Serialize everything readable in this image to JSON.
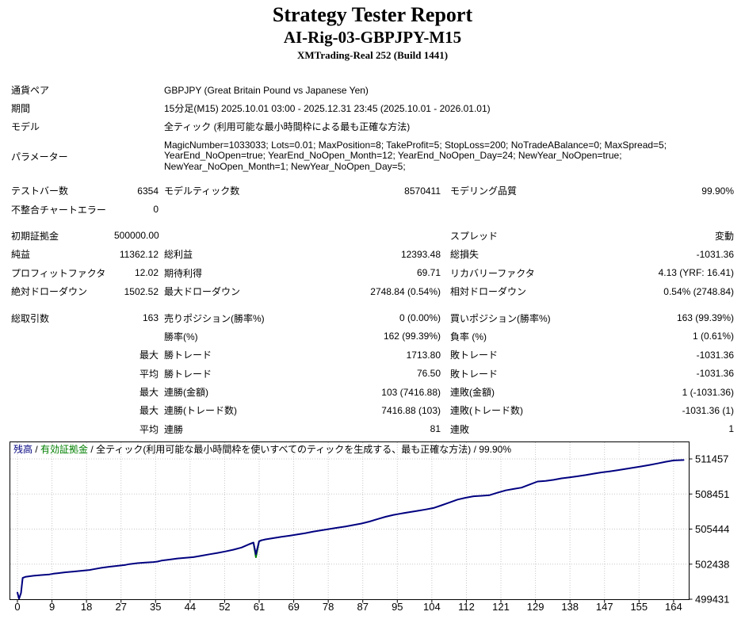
{
  "header": {
    "title": "Strategy Tester Report",
    "subtitle": "AI-Rig-03-GBPJPY-M15",
    "broker": "XMTrading-Real 252 (Build 1441)"
  },
  "info_rows": [
    {
      "label": "通貨ペア",
      "value": "GBPJPY (Great Britain Pound vs Japanese Yen)",
      "param": false
    },
    {
      "label": "期間",
      "value": "15分足(M15) 2025.10.01 03:00 - 2025.12.31 23:45 (2025.10.01 - 2026.01.01)",
      "param": false
    },
    {
      "label": "モデル",
      "value": "全ティック (利用可能な最小時間枠による最も正確な方法)",
      "param": false
    },
    {
      "label": "パラメーター",
      "value": "MagicNumber=1033033; Lots=0.01; MaxPosition=8; TakeProfit=5; StopLoss=200; NoTradeABalance=0; MaxSpread=5; YearEnd_NoOpen=true; YearEnd_NoOpen_Month=12; YearEnd_NoOpen_Day=24; NewYear_NoOpen=true; NewYear_NoOpen_Month=1; NewYear_NoOpen_Day=5;",
      "param": true
    }
  ],
  "stat_rows": [
    {
      "gap": false,
      "l1": "テストバー数",
      "v1": "6354",
      "l2": "モデルティック数",
      "v2": "8570411",
      "l3": "モデリング品質",
      "v3": "99.90%"
    },
    {
      "gap": false,
      "l1": "不整合チャートエラー",
      "v1": "0",
      "l2": "",
      "v2": "",
      "l3": "",
      "v3": ""
    },
    {
      "gap": true,
      "l1": "初期証拠金",
      "v1": "500000.00",
      "l2": "",
      "v2": "",
      "l3": "スプレッド",
      "v3": "変動"
    },
    {
      "gap": false,
      "l1": "純益",
      "v1": "11362.12",
      "l2": "総利益",
      "v2": "12393.48",
      "l3": "総損失",
      "v3": "-1031.36"
    },
    {
      "gap": false,
      "l1": "プロフィットファクタ",
      "v1": "12.02",
      "l2": "期待利得",
      "v2": "69.71",
      "l3": "リカバリーファクタ",
      "v3": "4.13 (YRF: 16.41)"
    },
    {
      "gap": false,
      "l1": "絶対ドローダウン",
      "v1": "1502.52",
      "l2": "最大ドローダウン",
      "v2": "2748.84 (0.54%)",
      "l3": "相対ドローダウン",
      "v3": "0.54% (2748.84)"
    },
    {
      "gap": true,
      "l1": "総取引数",
      "v1": "163",
      "l2": "売りポジション(勝率%)",
      "v2": "0 (0.00%)",
      "l3": "買いポジション(勝率%)",
      "v3": "163 (99.39%)"
    },
    {
      "gap": false,
      "l1": "",
      "v1": "",
      "l2": "勝率(%)",
      "v2": "162 (99.39%)",
      "l3": "負率 (%)",
      "v3": "1 (0.61%)"
    },
    {
      "gap": false,
      "l1": "",
      "v1": "最大",
      "l2": "勝トレード",
      "v2": "1713.80",
      "l3": "敗トレード",
      "v3": "-1031.36"
    },
    {
      "gap": false,
      "l1": "",
      "v1": "平均",
      "l2": "勝トレード",
      "v2": "76.50",
      "l3": "敗トレード",
      "v3": "-1031.36"
    },
    {
      "gap": false,
      "l1": "",
      "v1": "最大",
      "l2": "連勝(金額)",
      "v2": "103 (7416.88)",
      "l3": "連敗(金額)",
      "v3": "1 (-1031.36)"
    },
    {
      "gap": false,
      "l1": "",
      "v1": "最大",
      "l2": "連勝(トレード数)",
      "v2": "7416.88 (103)",
      "l3": "連敗(トレード数)",
      "v3": "-1031.36 (1)"
    },
    {
      "gap": false,
      "l1": "",
      "v1": "平均",
      "l2": "連勝",
      "v2": "81",
      "l3": "連敗",
      "v3": "1"
    }
  ],
  "chart_data": {
    "type": "line",
    "legend": {
      "balance_label": "残高",
      "sep1": " / ",
      "equity_label": "有効証拠金",
      "sep2": " / ",
      "description": "全ティック(利用可能な最小時間枠を使いすべてのティックを生成する、最も正確な方法)",
      "sep3": " / ",
      "quality": "99.90%"
    },
    "x_tick_labels": [
      0,
      9,
      18,
      27,
      35,
      44,
      52,
      61,
      69,
      78,
      87,
      95,
      104,
      112,
      121,
      129,
      138,
      147,
      155,
      164
    ],
    "y_tick_labels": [
      511457,
      508451,
      505444,
      502438,
      499431
    ],
    "xlim": [
      0,
      167.8
    ],
    "ylim": [
      499431,
      511457
    ],
    "grid": true,
    "legend_position": "top-left",
    "colors": {
      "balance": "#000080",
      "equity": "#008000",
      "grid": "#c8c8c8",
      "frame": "#000000"
    },
    "series": [
      {
        "name": "有効証拠金",
        "color": "#008000",
        "points": [
          [
            58,
            504160
          ],
          [
            59,
            504280
          ],
          [
            59.6,
            503030
          ],
          [
            60.4,
            504400
          ],
          [
            61,
            504480
          ]
        ]
      },
      {
        "name": "残高",
        "color": "#000080",
        "points": [
          [
            0,
            500000
          ],
          [
            0.4,
            499470
          ],
          [
            0.9,
            499960
          ],
          [
            1.3,
            501260
          ],
          [
            2,
            501350
          ],
          [
            4,
            501440
          ],
          [
            6,
            501500
          ],
          [
            8,
            501560
          ],
          [
            9,
            501620
          ],
          [
            10,
            501660
          ],
          [
            12,
            501740
          ],
          [
            14,
            501800
          ],
          [
            16,
            501870
          ],
          [
            18,
            501940
          ],
          [
            19,
            502000
          ],
          [
            21,
            502120
          ],
          [
            23,
            502220
          ],
          [
            25,
            502290
          ],
          [
            27,
            502370
          ],
          [
            28,
            502440
          ],
          [
            30,
            502520
          ],
          [
            32,
            502580
          ],
          [
            34,
            502620
          ],
          [
            35,
            502660
          ],
          [
            36,
            502740
          ],
          [
            38,
            502830
          ],
          [
            40,
            502920
          ],
          [
            42,
            502980
          ],
          [
            44,
            503040
          ],
          [
            46,
            503160
          ],
          [
            48,
            503280
          ],
          [
            50,
            503400
          ],
          [
            52,
            503530
          ],
          [
            54,
            503680
          ],
          [
            56,
            503860
          ],
          [
            58,
            504160
          ],
          [
            59,
            504280
          ],
          [
            59.6,
            503280
          ],
          [
            60.4,
            504400
          ],
          [
            61,
            504480
          ],
          [
            62,
            504560
          ],
          [
            64,
            504670
          ],
          [
            66,
            504780
          ],
          [
            68,
            504870
          ],
          [
            70,
            504980
          ],
          [
            72,
            505100
          ],
          [
            74,
            505230
          ],
          [
            76,
            505340
          ],
          [
            78,
            505450
          ],
          [
            80,
            505560
          ],
          [
            82,
            505670
          ],
          [
            84,
            505790
          ],
          [
            86,
            505920
          ],
          [
            88,
            506090
          ],
          [
            90,
            506300
          ],
          [
            92,
            506500
          ],
          [
            94,
            506660
          ],
          [
            96,
            506780
          ],
          [
            98,
            506900
          ],
          [
            100,
            507010
          ],
          [
            102,
            507120
          ],
          [
            104,
            507250
          ],
          [
            106,
            507480
          ],
          [
            108,
            507730
          ],
          [
            110,
            507970
          ],
          [
            112,
            508130
          ],
          [
            114,
            508260
          ],
          [
            116,
            508300
          ],
          [
            118,
            508350
          ],
          [
            120,
            508560
          ],
          [
            122,
            508760
          ],
          [
            124,
            508880
          ],
          [
            126,
            509000
          ],
          [
            128,
            509260
          ],
          [
            130,
            509520
          ],
          [
            132,
            509570
          ],
          [
            134,
            509660
          ],
          [
            136,
            509790
          ],
          [
            138,
            509880
          ],
          [
            140,
            509970
          ],
          [
            142,
            510070
          ],
          [
            144,
            510190
          ],
          [
            146,
            510300
          ],
          [
            148,
            510390
          ],
          [
            150,
            510490
          ],
          [
            152,
            510600
          ],
          [
            154,
            510710
          ],
          [
            156,
            510820
          ],
          [
            158,
            510940
          ],
          [
            160,
            511070
          ],
          [
            162,
            511210
          ],
          [
            164,
            511330
          ],
          [
            166.5,
            511362
          ]
        ]
      }
    ]
  }
}
